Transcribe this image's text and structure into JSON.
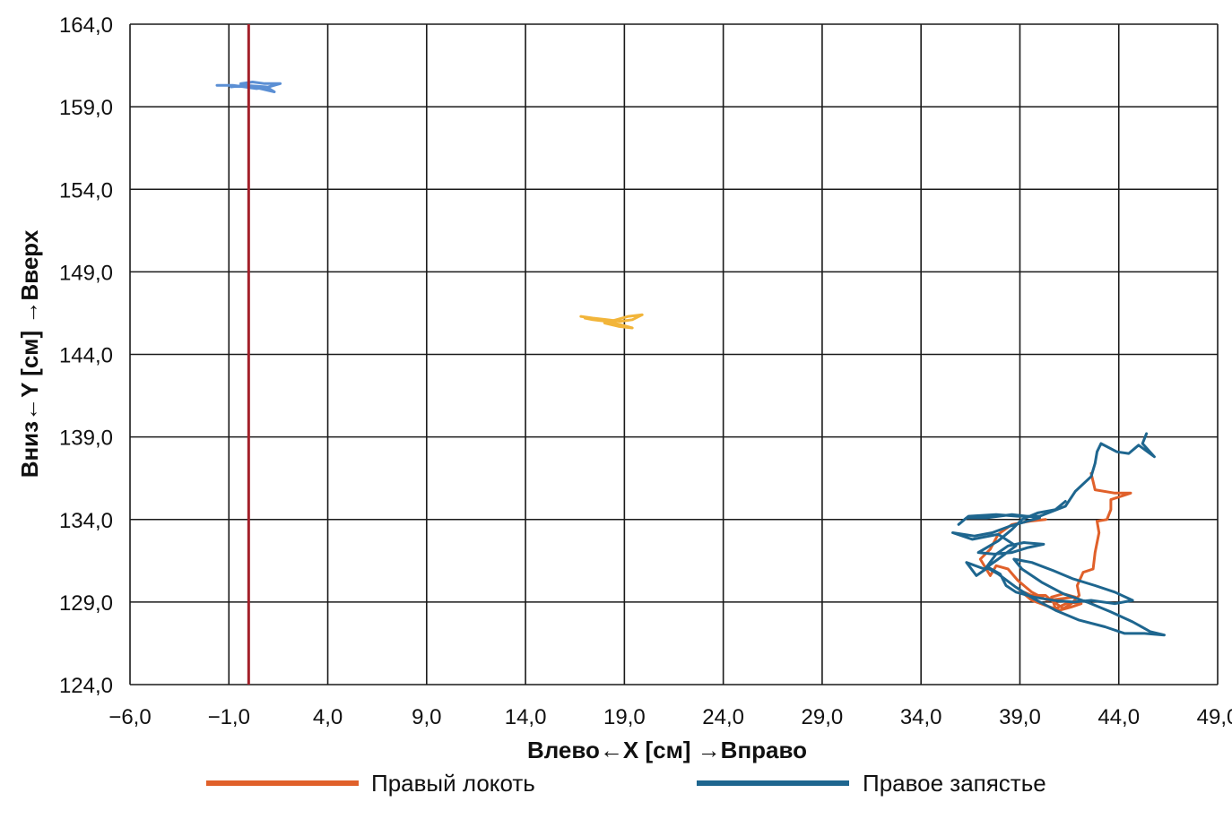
{
  "chart_data": {
    "type": "line",
    "xlabel": "Влево←X [см] →Вправо",
    "ylabel": "Вниз←Y [см] →Вверх",
    "xlim": [
      -6,
      49
    ],
    "ylim": [
      124,
      164
    ],
    "x_ticks": [
      "−6,0",
      "−1,0",
      "4,0",
      "9,0",
      "14,0",
      "19,0",
      "24,0",
      "29,0",
      "34,0",
      "39,0",
      "44,0",
      "49,0"
    ],
    "x_tick_values": [
      -6,
      -1,
      4,
      9,
      14,
      19,
      24,
      29,
      34,
      39,
      44,
      49
    ],
    "y_ticks": [
      "124,0",
      "129,0",
      "134,0",
      "139,0",
      "144,0",
      "149,0",
      "154,0",
      "159,0",
      "164,0"
    ],
    "y_tick_values": [
      124,
      129,
      134,
      139,
      144,
      149,
      154,
      159,
      164
    ],
    "grid": true,
    "legend_position": "bottom",
    "reference_line": {
      "x": 0.0,
      "color": "#a3202a"
    },
    "series": [
      {
        "name": "Правый локоть",
        "color": "#e0602a",
        "points": [
          [
            42.6,
            136.8
          ],
          [
            42.8,
            135.8
          ],
          [
            43.8,
            135.6
          ],
          [
            44.6,
            135.6
          ],
          [
            43.6,
            135.2
          ],
          [
            43.6,
            134.6
          ],
          [
            43.4,
            134.0
          ],
          [
            42.9,
            133.9
          ],
          [
            43.0,
            133.2
          ],
          [
            42.8,
            132.0
          ],
          [
            42.7,
            131.0
          ],
          [
            42.2,
            130.8
          ],
          [
            41.9,
            130.0
          ],
          [
            42.0,
            129.4
          ],
          [
            41.6,
            128.9
          ],
          [
            41.2,
            128.6
          ],
          [
            40.6,
            129.1
          ],
          [
            40.3,
            129.4
          ],
          [
            39.6,
            129.4
          ],
          [
            39.0,
            129.7
          ],
          [
            39.6,
            129.1
          ],
          [
            40.3,
            128.8
          ],
          [
            41.0,
            128.5
          ],
          [
            41.6,
            128.7
          ],
          [
            42.1,
            128.9
          ],
          [
            41.5,
            129.0
          ],
          [
            40.8,
            128.6
          ],
          [
            40.6,
            129.3
          ],
          [
            41.2,
            129.5
          ],
          [
            41.8,
            129.3
          ],
          [
            40.4,
            129.1
          ],
          [
            39.6,
            129.6
          ],
          [
            38.9,
            130.3
          ],
          [
            38.4,
            131.0
          ],
          [
            37.8,
            131.2
          ],
          [
            37.5,
            130.6
          ],
          [
            37.0,
            131.6
          ],
          [
            37.5,
            132.2
          ],
          [
            37.9,
            133.1
          ],
          [
            38.6,
            133.7
          ],
          [
            39.5,
            133.9
          ],
          [
            40.3,
            134.0
          ]
        ]
      },
      {
        "name": "Правое запястье",
        "color": "#1e668f",
        "points": [
          [
            45.4,
            139.2
          ],
          [
            45.2,
            138.6
          ],
          [
            45.8,
            137.8
          ],
          [
            45.0,
            138.5
          ],
          [
            44.5,
            138.0
          ],
          [
            43.9,
            138.1
          ],
          [
            43.1,
            138.6
          ],
          [
            42.9,
            138.1
          ],
          [
            42.8,
            137.4
          ],
          [
            42.6,
            136.6
          ],
          [
            41.8,
            135.7
          ],
          [
            41.3,
            134.8
          ],
          [
            40.0,
            134.2
          ],
          [
            38.9,
            134.2
          ],
          [
            37.8,
            134.3
          ],
          [
            36.4,
            134.2
          ],
          [
            35.9,
            133.7
          ],
          [
            36.3,
            134.1
          ],
          [
            37.3,
            134.1
          ],
          [
            38.6,
            134.3
          ],
          [
            40.0,
            134.1
          ],
          [
            38.5,
            133.6
          ],
          [
            37.6,
            133.2
          ],
          [
            36.7,
            133.0
          ],
          [
            35.6,
            133.2
          ],
          [
            36.6,
            132.8
          ],
          [
            37.9,
            133.1
          ],
          [
            38.8,
            132.4
          ],
          [
            37.9,
            131.6
          ],
          [
            37.2,
            131.0
          ],
          [
            36.3,
            131.4
          ],
          [
            36.8,
            130.6
          ],
          [
            37.4,
            131.1
          ],
          [
            38.0,
            130.7
          ],
          [
            38.3,
            130.0
          ],
          [
            38.8,
            129.6
          ],
          [
            39.7,
            129.3
          ],
          [
            40.7,
            129.1
          ],
          [
            41.7,
            129.0
          ],
          [
            42.6,
            129.1
          ],
          [
            43.8,
            128.9
          ],
          [
            44.7,
            129.1
          ],
          [
            43.8,
            129.6
          ],
          [
            42.8,
            130.0
          ],
          [
            41.7,
            130.4
          ],
          [
            40.7,
            130.9
          ],
          [
            39.6,
            131.4
          ],
          [
            38.7,
            131.6
          ],
          [
            39.1,
            131.0
          ],
          [
            40.1,
            130.2
          ],
          [
            41.2,
            129.5
          ],
          [
            42.4,
            129.0
          ],
          [
            43.6,
            128.4
          ],
          [
            44.7,
            127.8
          ],
          [
            45.6,
            127.2
          ],
          [
            46.3,
            127.0
          ],
          [
            45.3,
            127.1
          ],
          [
            44.3,
            127.1
          ],
          [
            43.3,
            127.5
          ],
          [
            42.0,
            127.9
          ],
          [
            40.8,
            128.5
          ],
          [
            39.7,
            129.2
          ],
          [
            38.8,
            129.9
          ],
          [
            37.9,
            130.7
          ],
          [
            37.3,
            131.1
          ],
          [
            37.8,
            131.9
          ],
          [
            38.4,
            132.4
          ],
          [
            39.2,
            132.6
          ],
          [
            40.2,
            132.5
          ],
          [
            39.4,
            132.3
          ],
          [
            38.6,
            132.0
          ],
          [
            37.7,
            131.9
          ],
          [
            36.9,
            132.0
          ],
          [
            37.9,
            132.7
          ],
          [
            38.6,
            133.4
          ],
          [
            39.1,
            134.0
          ],
          [
            39.9,
            134.4
          ],
          [
            40.8,
            134.6
          ],
          [
            41.3,
            135.1
          ]
        ]
      },
      {
        "name": "",
        "color": "#5b8fd4",
        "points": [
          [
            -1.6,
            160.3
          ],
          [
            -0.8,
            160.3
          ],
          [
            -0.2,
            160.2
          ],
          [
            0.4,
            160.1
          ],
          [
            1.0,
            160.2
          ],
          [
            1.6,
            160.4
          ],
          [
            0.8,
            160.4
          ],
          [
            0.2,
            160.5
          ],
          [
            -0.4,
            160.4
          ],
          [
            0.6,
            160.1
          ],
          [
            1.3,
            159.9
          ],
          [
            0.9,
            160.2
          ],
          [
            -0.2,
            160.3
          ],
          [
            -0.9,
            160.2
          ]
        ]
      },
      {
        "name": "",
        "color": "#f2b53a",
        "points": [
          [
            16.8,
            146.3
          ],
          [
            17.4,
            146.2
          ],
          [
            18.1,
            146.1
          ],
          [
            18.8,
            146.0
          ],
          [
            19.4,
            146.1
          ],
          [
            19.9,
            146.4
          ],
          [
            19.2,
            146.3
          ],
          [
            18.6,
            146.1
          ],
          [
            18.0,
            145.9
          ],
          [
            18.7,
            145.7
          ],
          [
            19.4,
            145.6
          ],
          [
            18.8,
            145.8
          ],
          [
            18.1,
            146.0
          ],
          [
            17.4,
            146.1
          ],
          [
            17.0,
            146.2
          ]
        ]
      }
    ]
  }
}
